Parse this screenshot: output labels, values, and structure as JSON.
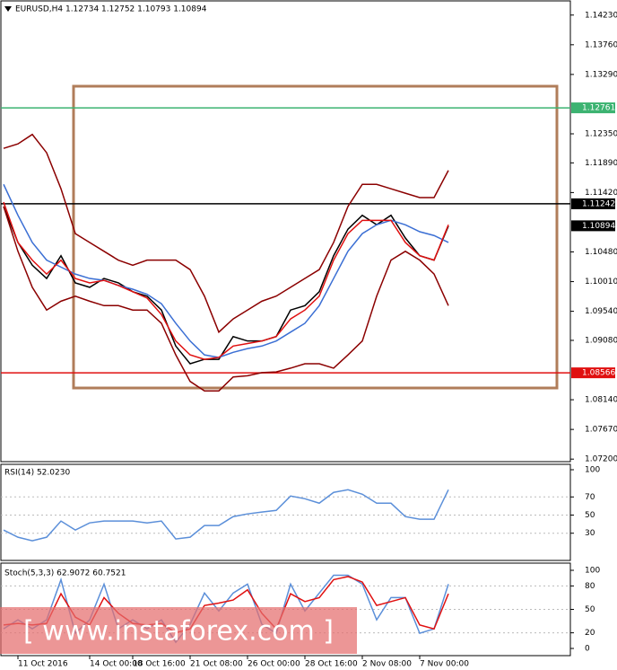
{
  "chart_data": [
    {
      "type": "line",
      "title": "EURUSD,H4  1.12734  1.12752  1.10793  1.10894",
      "categories": [
        null,
        "11 Oct 2016",
        null,
        null,
        null,
        null,
        "14 Oct 00:00",
        null,
        null,
        "18 Oct 16:00",
        null,
        null,
        null,
        "21 Oct 08:00",
        null,
        null,
        null,
        "26 Oct 00:00",
        null,
        null,
        null,
        "28 Oct 16:00",
        null,
        null,
        null,
        "2 Nov 08:00",
        null,
        null,
        null,
        "7 Nov 00:00",
        null,
        null
      ],
      "series": [
        {
          "color": "#000000",
          "values": [
            1.112,
            1.1063,
            1.1027,
            1.1006,
            1.1042,
            1.0999,
            1.0992,
            1.1006,
            1.0999,
            1.0985,
            1.0978,
            1.0956,
            1.0899,
            1.0871,
            1.0878,
            1.0878,
            1.0914,
            1.0907,
            1.0907,
            1.0914,
            1.0956,
            1.0963,
            1.0985,
            1.1042,
            1.1084,
            1.1106,
            1.1091,
            1.1106,
            1.107,
            1.1042,
            1.1035,
            1.1089
          ]
        },
        {
          "color": "#8b0000",
          "values": [
            1.1212,
            1.1219,
            1.1234,
            1.1205,
            1.1148,
            1.1077,
            1.1063,
            1.1049,
            1.1035,
            1.1027,
            1.1035,
            1.1035,
            1.1035,
            1.102,
            1.0978,
            1.0921,
            1.0942,
            1.0956,
            1.097,
            1.0978,
            1.0992,
            1.1006,
            1.102,
            1.1063,
            1.112,
            1.1155,
            1.1155,
            1.1148,
            1.1141,
            1.1134,
            1.1134,
            1.1177
          ]
        },
        {
          "color": "#8b0000",
          "values": [
            1.112,
            1.1049,
            1.0992,
            1.0956,
            1.097,
            1.0978,
            1.097,
            1.0963,
            1.0963,
            1.0956,
            1.0956,
            1.0935,
            1.0885,
            1.0843,
            1.0828,
            1.0828,
            1.085,
            1.0852,
            1.0857,
            1.0858,
            1.0864,
            1.0871,
            1.0871,
            1.0864,
            1.0885,
            1.0907,
            1.0978,
            1.1035,
            1.1049,
            1.1035,
            1.1013,
            1.0963
          ]
        },
        {
          "color": "#3b6fd4",
          "values": [
            1.1155,
            1.1106,
            1.1063,
            1.1035,
            1.1024,
            1.1013,
            1.1006,
            1.1003,
            1.0995,
            1.0989,
            1.0981,
            1.0966,
            1.0935,
            1.0907,
            1.0885,
            1.0881,
            1.0889,
            1.0895,
            1.0899,
            1.0907,
            1.0921,
            1.0935,
            1.0963,
            1.1006,
            1.1049,
            1.1077,
            1.1091,
            1.1098,
            1.1091,
            1.108,
            1.1074,
            1.1063
          ]
        },
        {
          "color": "#e01010",
          "values": [
            1.1127,
            1.1063,
            1.1035,
            1.1013,
            1.1035,
            1.1006,
            1.0999,
            1.1003,
            1.0995,
            1.0985,
            1.0975,
            1.0949,
            1.0907,
            1.0885,
            1.0878,
            1.0881,
            1.0899,
            1.0903,
            1.0907,
            1.0914,
            1.0942,
            1.0956,
            1.0978,
            1.1035,
            1.1077,
            1.1098,
            1.1098,
            1.1098,
            1.1063,
            1.1042,
            1.1035,
            1.1091
          ]
        }
      ],
      "ylim": [
        1.0716,
        1.1444
      ],
      "yticks": [
        {
          "value": 1.1423,
          "label": "1.14230"
        },
        {
          "value": 1.1376,
          "label": "1.13760"
        },
        {
          "value": 1.1329,
          "label": "1.13290"
        },
        {
          "value": 1.1235,
          "label": "1.12350"
        },
        {
          "value": 1.1189,
          "label": "1.11890"
        },
        {
          "value": 1.1142,
          "label": "1.11420"
        },
        {
          "value": 1.1048,
          "label": "1.10480"
        },
        {
          "value": 1.1001,
          "label": "1.10010"
        },
        {
          "value": 1.0954,
          "label": "1.09540"
        },
        {
          "value": 1.0908,
          "label": "1.09080"
        },
        {
          "value": 1.0814,
          "label": "1.08140"
        },
        {
          "value": 1.0767,
          "label": "1.07670"
        },
        {
          "value": 1.072,
          "label": "1.07200"
        }
      ],
      "levels": [
        {
          "value": 1.12761,
          "color": "#3cb371",
          "text_color": "#ffffff"
        },
        {
          "value": 1.11242,
          "color": "#000000",
          "text_color": "#ffffff"
        },
        {
          "value": 1.10894,
          "color": "#000000",
          "text_color": "#ffffff"
        },
        {
          "value": 1.08566,
          "color": "#e01010",
          "text_color": "#ffffff"
        }
      ]
    },
    {
      "type": "line",
      "title": "RSI(14) 52.0230",
      "series": [
        {
          "color": "#5b8fd9",
          "values": [
            33.5,
            25.6,
            21.7,
            25.6,
            43.4,
            33.5,
            41.4,
            43.4,
            43.4,
            43.4,
            41.4,
            43.4,
            23.7,
            25.6,
            38.5,
            38.5,
            48.3,
            51.3,
            53.3,
            55.2,
            71.0,
            68.0,
            63.1,
            75.0,
            77.9,
            73.0,
            63.1,
            63.1,
            48.3,
            45.4,
            45.4,
            77.9
          ]
        }
      ],
      "ylim": [
        0,
        100
      ],
      "yticks": [
        30,
        50,
        70,
        100
      ]
    },
    {
      "type": "line",
      "title": "Stoch(5,3,3) 62.9072 60.7521",
      "series": [
        {
          "color": "#5b8fd9",
          "values": [
            25.1,
            36.6,
            25.1,
            36.6,
            88,
            19.4,
            36.6,
            82.3,
            25.1,
            36.6,
            25.1,
            36.6,
            8,
            30.9,
            70.9,
            48,
            70.9,
            82.3,
            30.9,
            19.4,
            82.3,
            48,
            70.9,
            93.7,
            93.7,
            82.3,
            36.6,
            65.1,
            65.1,
            19.4,
            25.1,
            82.3
          ]
        },
        {
          "color": "#e01010",
          "values": [
            30,
            32,
            30,
            32,
            70,
            40,
            30,
            65,
            45,
            32,
            30,
            32,
            20,
            25,
            55,
            58,
            62,
            75,
            45,
            25,
            70,
            60,
            65,
            88,
            92,
            85,
            55,
            60,
            65,
            30,
            25,
            70
          ]
        }
      ],
      "ylim": [
        0,
        100
      ],
      "yticks": [
        0,
        20,
        50,
        80,
        100
      ]
    }
  ],
  "watermark": "[ www.instaforex.com ]"
}
